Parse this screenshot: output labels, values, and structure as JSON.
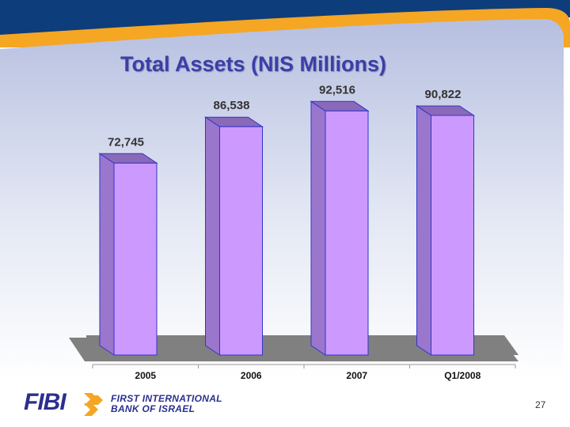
{
  "slide": {
    "page_number": "27",
    "logo": {
      "wordmark": "FIBI",
      "line1": "FIRST INTERNATIONAL",
      "line2": "BANK OF ISRAEL"
    }
  },
  "colors": {
    "bar_front": "#cc99ff",
    "bar_side": "#9a77cc",
    "bar_top": "#8a6ab8",
    "bar_outline": "#3333cc",
    "floor": "#808080",
    "title": "#3b3fa6",
    "accent_band": "#f5a623",
    "header_band": "#0d3d7a"
  },
  "chart_data": {
    "type": "bar",
    "title": "Total Assets (NIS Millions)",
    "categories": [
      "2005",
      "2006",
      "2007",
      "Q1/2008"
    ],
    "values": [
      72745,
      86538,
      92516,
      90822
    ],
    "value_labels": [
      "72,745",
      "86,538",
      "92,516",
      "90,822"
    ],
    "xlabel": "",
    "ylabel": "",
    "ylim": [
      0,
      95000
    ],
    "grid": false,
    "legend": "none",
    "style": "3d-column"
  }
}
